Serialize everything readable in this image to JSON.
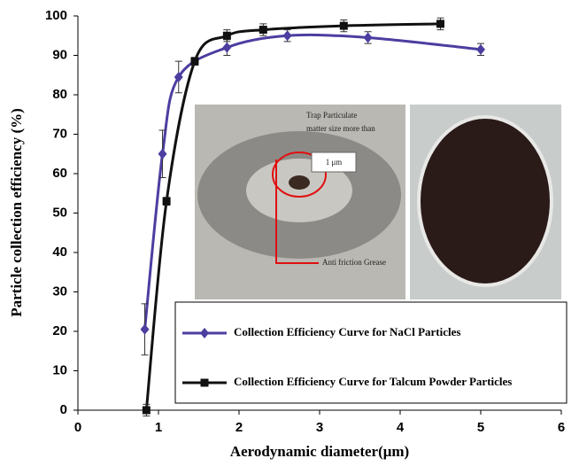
{
  "chart_data": {
    "type": "line",
    "xlabel": "Aerodynamic diameter(μm)",
    "ylabel": "Particle collection efficiency (%)",
    "xlim": [
      0,
      6
    ],
    "xticks": [
      0,
      1,
      2,
      3,
      4,
      5,
      6
    ],
    "ylim": [
      0,
      100
    ],
    "yticks": [
      0,
      10,
      20,
      30,
      40,
      50,
      60,
      70,
      80,
      90,
      100
    ],
    "series": [
      {
        "name": "Collection Efficiency Curve for NaCl Particles",
        "color": "#4b3ea0",
        "marker": "diamond",
        "x": [
          0.83,
          1.05,
          1.25,
          1.85,
          2.6,
          3.6,
          5.0
        ],
        "values": [
          20.5,
          65,
          84.5,
          92,
          95,
          94.5,
          91.5
        ],
        "errors": [
          6.5,
          6,
          4,
          2,
          1.5,
          1.5,
          1.5
        ]
      },
      {
        "name": "Collection Efficiency Curve for Talcum Powder Particles",
        "color": "#111111",
        "marker": "square",
        "x": [
          0.85,
          1.1,
          1.45,
          1.85,
          2.3,
          3.3,
          4.5
        ],
        "values": [
          0,
          53,
          88.5,
          95,
          96.5,
          97.5,
          98
        ],
        "errors": [
          1.5,
          1,
          1,
          1.5,
          1.5,
          1.5,
          1.5
        ]
      }
    ],
    "annotations": [
      "Trap Particulate",
      "matter size more than",
      "1 μm",
      "Anti friction Grease"
    ]
  }
}
